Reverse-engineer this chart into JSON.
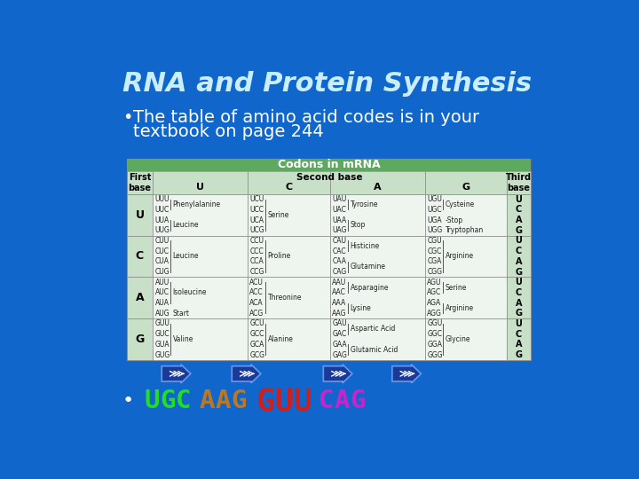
{
  "title": "RNA and Protein Synthesis",
  "bullet": "•",
  "subtitle_line1": "The table of amino acid codes is in your",
  "subtitle_line2": "textbook on page 244",
  "title_color": "#c8eeff",
  "subtitle_color": "#ffffff",
  "bg_color": "#1166cc",
  "table_header": "Codons in mRNA",
  "table_header_bg": "#5fa85f",
  "table_header_color": "#ffffff",
  "col_header_bg": "#c8dfc8",
  "cell_bg": "#eef5ee",
  "grid_color": "#888888",
  "rows": [
    {
      "first": "U",
      "cols": [
        {
          "codons": [
            "UUU",
            "UUC",
            "UUA",
            "UUG"
          ],
          "aa": [
            [
              "Phenylalanine",
              0,
              1
            ],
            [
              "Leucine",
              2,
              3
            ]
          ]
        },
        {
          "codons": [
            "UCU",
            "UCC",
            "UCA",
            "UCG"
          ],
          "aa": [
            [
              "Serine",
              0,
              3
            ]
          ]
        },
        {
          "codons": [
            "UAU",
            "UAC",
            "UAA",
            "UAG"
          ],
          "aa": [
            [
              "Tyrosine",
              0,
              1
            ],
            [
              "Stop",
              2,
              3
            ]
          ]
        },
        {
          "codons": [
            "UGU",
            "UGC",
            "UGA",
            "UGG"
          ],
          "aa": [
            [
              "Cysteine",
              0,
              1
            ],
            [
              "-Stop",
              2,
              2
            ],
            [
              "Tryptophan",
              3,
              3
            ]
          ]
        }
      ],
      "third": [
        "U",
        "C",
        "A",
        "G"
      ]
    },
    {
      "first": "C",
      "cols": [
        {
          "codons": [
            "CUU",
            "CUC",
            "CUA",
            "CUG"
          ],
          "aa": [
            [
              "Leucine",
              0,
              3
            ]
          ]
        },
        {
          "codons": [
            "CCU",
            "CCC",
            "CCA",
            "CCG"
          ],
          "aa": [
            [
              "Proline",
              0,
              3
            ]
          ]
        },
        {
          "codons": [
            "CAU",
            "CAC",
            "CAA",
            "CAG"
          ],
          "aa": [
            [
              "Histicine",
              0,
              1
            ],
            [
              "Glutamine",
              2,
              3
            ]
          ]
        },
        {
          "codons": [
            "CGU",
            "CGC",
            "CGA",
            "CGG"
          ],
          "aa": [
            [
              "Arginine",
              0,
              3
            ]
          ]
        }
      ],
      "third": [
        "U",
        "C",
        "A",
        "G"
      ]
    },
    {
      "first": "A",
      "cols": [
        {
          "codons": [
            "AUU",
            "AUC",
            "AUA",
            "AUG"
          ],
          "aa": [
            [
              "Isoleucine",
              0,
              2
            ],
            [
              "Start",
              3,
              3
            ]
          ]
        },
        {
          "codons": [
            "ACU",
            "ACC",
            "ACA",
            "ACG"
          ],
          "aa": [
            [
              "Threonine",
              0,
              3
            ]
          ]
        },
        {
          "codons": [
            "AAU",
            "AAC",
            "AAA",
            "AAG"
          ],
          "aa": [
            [
              "Asparagine",
              0,
              1
            ],
            [
              "Lysine",
              2,
              3
            ]
          ]
        },
        {
          "codons": [
            "AGU",
            "AGC",
            "AGA",
            "AGG"
          ],
          "aa": [
            [
              "Serine",
              0,
              1
            ],
            [
              "Arginine",
              2,
              3
            ]
          ]
        }
      ],
      "third": [
        "U",
        "C",
        "A",
        "G"
      ]
    },
    {
      "first": "G",
      "cols": [
        {
          "codons": [
            "GUU",
            "GUC",
            "GUA",
            "GUG"
          ],
          "aa": [
            [
              "Valine",
              0,
              3
            ]
          ]
        },
        {
          "codons": [
            "GCU",
            "GCC",
            "GCA",
            "GCG"
          ],
          "aa": [
            [
              "Alanine",
              0,
              3
            ]
          ]
        },
        {
          "codons": [
            "GAU",
            "GAC",
            "GAA",
            "GAG"
          ],
          "aa": [
            [
              "Aspartic Acid",
              0,
              1
            ],
            [
              "Glutamic Acid",
              2,
              3
            ]
          ]
        },
        {
          "codons": [
            "GGU",
            "GGC",
            "GGA",
            "GGG"
          ],
          "aa": [
            [
              "Glycine",
              0,
              3
            ]
          ]
        }
      ],
      "third": [
        "U",
        "C",
        "A",
        "G"
      ]
    }
  ],
  "bottom_letters": [
    {
      "t": "U",
      "c": "#22dd22"
    },
    {
      "t": "G",
      "c": "#22dd22"
    },
    {
      "t": "C",
      "c": "#22dd22"
    },
    {
      "t": "A",
      "c": "#bb7722"
    },
    {
      "t": "A",
      "c": "#bb7722"
    },
    {
      "t": "G",
      "c": "#bb7722"
    },
    {
      "t": "G",
      "c": "#cc2020"
    },
    {
      "t": "U",
      "c": "#cc2020"
    },
    {
      "t": "U",
      "c": "#cc2020"
    },
    {
      "t": "C",
      "c": "#cc22cc"
    },
    {
      "t": "A",
      "c": "#cc22cc"
    },
    {
      "t": "G",
      "c": "#cc22cc"
    }
  ],
  "arrow_color": "#1a3a99",
  "arrow_edge_color": "#6699ee"
}
